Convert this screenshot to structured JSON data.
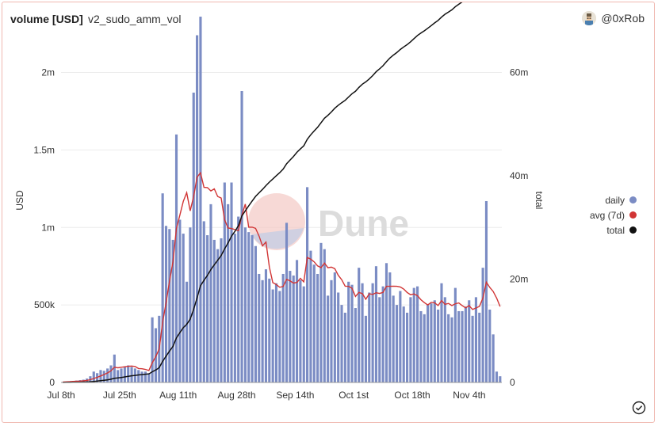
{
  "header": {
    "title": "volume [USD]",
    "query_name": "v2_sudo_amm_vol",
    "user": "@0xRob"
  },
  "watermark": "Dune",
  "colors": {
    "daily": "#7b8cc4",
    "avg": "#d13535",
    "total": "#111111",
    "grid": "#ececec",
    "axis_text": "#333333"
  },
  "chart_data": {
    "type": "bar+line",
    "start_date": "2022-07-08",
    "x_ticks": [
      "Jul 8th",
      "Jul 25th",
      "Aug 11th",
      "Aug 28th",
      "Sep 14th",
      "Oct 1st",
      "Oct 18th",
      "Nov 4th"
    ],
    "ylabel_left": "USD",
    "ylabel_right": "total",
    "y_left_ticks": [
      "0",
      "500k",
      "1m",
      "1.5m",
      "2m"
    ],
    "y_right_ticks": [
      "0",
      "20m",
      "40m",
      "60m"
    ],
    "ylim_left": [
      0,
      2350000
    ],
    "ylim_right": [
      0,
      70500000
    ],
    "series": [
      {
        "name": "daily",
        "type": "bar",
        "axis": "left",
        "values": [
          3000,
          5000,
          8000,
          10000,
          12000,
          15000,
          18000,
          25000,
          40000,
          70000,
          60000,
          80000,
          75000,
          90000,
          110000,
          180000,
          80000,
          90000,
          100000,
          110000,
          100000,
          90000,
          80000,
          70000,
          70000,
          60000,
          420000,
          350000,
          430000,
          1220000,
          1010000,
          990000,
          920000,
          1600000,
          1050000,
          960000,
          650000,
          1000000,
          1870000,
          2240000,
          2360000,
          1040000,
          950000,
          1150000,
          920000,
          860000,
          930000,
          1290000,
          1150000,
          1290000,
          960000,
          1070000,
          1880000,
          1000000,
          970000,
          950000,
          880000,
          700000,
          660000,
          730000,
          670000,
          600000,
          640000,
          590000,
          700000,
          1030000,
          720000,
          690000,
          790000,
          660000,
          620000,
          1260000,
          850000,
          760000,
          700000,
          900000,
          860000,
          560000,
          660000,
          710000,
          580000,
          500000,
          450000,
          650000,
          630000,
          480000,
          740000,
          640000,
          430000,
          580000,
          640000,
          750000,
          550000,
          620000,
          770000,
          710000,
          560000,
          500000,
          590000,
          490000,
          450000,
          550000,
          610000,
          620000,
          460000,
          440000,
          500000,
          510000,
          530000,
          470000,
          640000,
          550000,
          440000,
          420000,
          610000,
          460000,
          460000,
          490000,
          530000,
          430000,
          550000,
          450000,
          740000,
          1170000,
          470000,
          310000,
          70000,
          40000
        ],
        "avg": [
          3000,
          4000,
          5300,
          6500,
          7600,
          8800,
          10100,
          13300,
          18000,
          25600,
          33100,
          42100,
          51000,
          61300,
          75000,
          98600,
          94600,
          98100,
          101400,
          104300,
          105700,
          103000,
          90000,
          88600,
          84300,
          77100,
          127100,
          167100,
          215700,
          387100,
          515700,
          652800,
          780000,
          991400,
          1080000,
          1168600,
          1224300,
          1107100,
          1198600,
          1324300,
          1352900,
          1258600,
          1257100,
          1235700,
          1249000,
          1200000,
          1190000,
          1050000,
          996000,
          993000,
          986000,
          979000,
          1076000,
          1151000,
          1002000,
          1002000,
          994000,
          944000,
          881000,
          906000,
          744000,
          644000,
          632000,
          614000,
          619000,
          665000,
          655000,
          641000,
          645000,
          672000,
          649000,
          806000,
          796000,
          778000,
          752000,
          741000,
          770000,
          740000,
          744000,
          734000,
          691000,
          663000,
          621000,
          620000,
          608000,
          555000,
          581000,
          573000,
          537000,
          572000,
          568000,
          579000,
          574000,
          581000,
          620000,
          620000,
          621000,
          620000,
          616000,
          603000,
          581000,
          566000,
          571000,
          560000,
          534000,
          515000,
          500000,
          517000,
          514000,
          496000,
          528000,
          504000,
          510000,
          496000,
          508000,
          513000,
          496000,
          481000,
          496000,
          471000,
          480000,
          491000,
          544000,
          647000,
          613000,
          587000,
          544000,
          490000
        ],
        "total": [
          3000,
          8000,
          16000,
          26000,
          38000,
          53000,
          71000,
          96000,
          136000,
          206000,
          266000,
          346000,
          421000,
          511000,
          621000,
          801000,
          881000,
          971000,
          1071000,
          1181000,
          1281000,
          1371000,
          1451000,
          1521000,
          1591000,
          1651000,
          2071000,
          2421000,
          2851000,
          4071000,
          5081000,
          6071000,
          6991000,
          8591000,
          9641000,
          10601000,
          11251000,
          12251000,
          14121000,
          16361000,
          18721000,
          19761000,
          20711000,
          21861000,
          22781000,
          23641000,
          24571000,
          25861000,
          27011000,
          28301000,
          29261000,
          30331000,
          32211000,
          33211000,
          34181000,
          35131000,
          36011000,
          36711000,
          37371000,
          38101000,
          38771000,
          39371000,
          40011000,
          40601000,
          41301000,
          42331000,
          43051000,
          43741000,
          44531000,
          45191000,
          45811000,
          47071000,
          47921000,
          48681000,
          49381000,
          50281000,
          51141000,
          51701000,
          52361000,
          53071000,
          53651000,
          54151000,
          54601000,
          55251000,
          55881000,
          56361000,
          57101000,
          57741000,
          58171000,
          58751000,
          59391000,
          60141000,
          60691000,
          61311000,
          62081000,
          62791000,
          63351000,
          63851000,
          64441000,
          64931000,
          65381000,
          65931000,
          66541000,
          67161000,
          67621000,
          68061000,
          68561000,
          69071000,
          69601000,
          70071000,
          70711000,
          71261000,
          71701000,
          72121000,
          72731000,
          73191000,
          73651000,
          74141000,
          74671000,
          75101000,
          75651000,
          76101000,
          76841000,
          78011000,
          78481000,
          78791000,
          78861000,
          78901000
        ]
      }
    ],
    "legend": [
      "daily",
      "avg (7d)",
      "total"
    ],
    "legend_position": "right",
    "grid": true
  }
}
